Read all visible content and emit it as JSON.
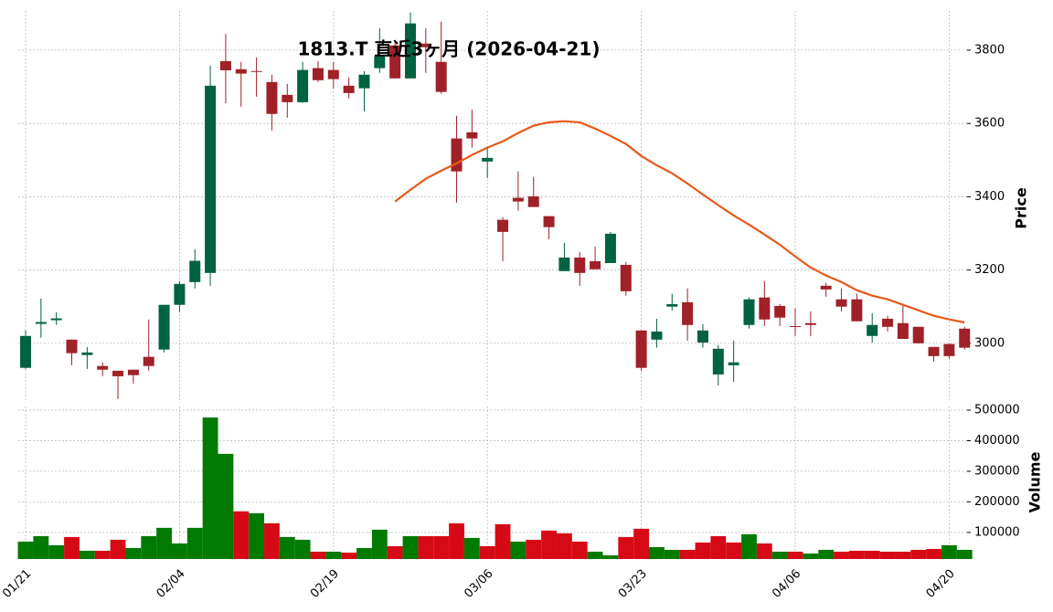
{
  "chart_data": {
    "type": "candlestick",
    "title": "1813.T 直近3ヶ月 (2026-04-21)",
    "categories": [
      "01/21",
      null,
      null,
      null,
      null,
      null,
      null,
      null,
      null,
      null,
      "02/04",
      null,
      null,
      null,
      null,
      null,
      null,
      null,
      null,
      null,
      "02/19",
      null,
      null,
      null,
      null,
      null,
      null,
      null,
      null,
      null,
      "03/06",
      null,
      null,
      null,
      null,
      null,
      null,
      null,
      null,
      null,
      "03/23",
      null,
      null,
      null,
      null,
      null,
      null,
      null,
      null,
      null,
      "04/06",
      null,
      null,
      null,
      null,
      null,
      null,
      null,
      null,
      null,
      "04/20",
      null
    ],
    "open": [
      2933,
      3053,
      3063,
      3010,
      2968,
      2938,
      2925,
      2928,
      2963,
      2983,
      3105,
      3167,
      3192,
      3770,
      3748,
      3743,
      3713,
      3678,
      3658,
      3751,
      3746,
      3703,
      3696,
      3751,
      3813,
      3723,
      3818,
      3768,
      3559,
      3576,
      3496,
      3337,
      3397,
      3401,
      3347,
      3197,
      3234,
      3224,
      3219,
      3214,
      3035,
      3010,
      3100,
      3112,
      3002,
      2915,
      2940,
      3050,
      3125,
      3102,
      3047,
      3055,
      3157,
      3120,
      3120,
      3020,
      3067,
      3055,
      3045,
      2990,
      2998,
      3040
    ],
    "high": [
      3035,
      3122,
      3085,
      3010,
      2990,
      2948,
      2925,
      2928,
      3065,
      3105,
      3170,
      3257,
      3758,
      3845,
      3768,
      3780,
      3733,
      3708,
      3768,
      3770,
      3768,
      3726,
      3743,
      3860,
      3828,
      3903,
      3860,
      3878,
      3621,
      3638,
      3534,
      3344,
      3469,
      3454,
      3347,
      3274,
      3249,
      3264,
      3304,
      3222,
      3035,
      3067,
      3135,
      3150,
      3052,
      2995,
      3007,
      3125,
      3170,
      3107,
      3095,
      3087,
      3165,
      3150,
      3135,
      3082,
      3075,
      3107,
      3045,
      2990,
      3000,
      3045
    ],
    "low": [
      2930,
      3015,
      3050,
      2940,
      2930,
      2910,
      2848,
      2890,
      2925,
      2975,
      3085,
      3150,
      3157,
      3655,
      3646,
      3673,
      3581,
      3616,
      3656,
      3713,
      3696,
      3668,
      3633,
      3738,
      3723,
      3723,
      3738,
      3681,
      3384,
      3534,
      3451,
      3224,
      3362,
      3372,
      3284,
      3197,
      3157,
      3202,
      3219,
      3130,
      2925,
      2988,
      3090,
      3007,
      2988,
      2885,
      2895,
      3040,
      3047,
      3047,
      3020,
      3020,
      3127,
      3087,
      3060,
      3002,
      3032,
      3012,
      3000,
      2950,
      2958,
      2983
    ],
    "close": [
      3020,
      3058,
      3068,
      2973,
      2975,
      2928,
      2910,
      2913,
      2938,
      3105,
      3162,
      3225,
      3703,
      3745,
      3736,
      3741,
      3626,
      3658,
      3746,
      3718,
      3721,
      3683,
      3733,
      3783,
      3723,
      3873,
      3808,
      3686,
      3469,
      3559,
      3506,
      3304,
      3387,
      3372,
      3317,
      3234,
      3192,
      3202,
      3299,
      3142,
      2933,
      3032,
      3107,
      3050,
      3035,
      2985,
      2948,
      3120,
      3065,
      3070,
      3045,
      3050,
      3147,
      3100,
      3060,
      3050,
      3045,
      3012,
      3000,
      2965,
      2965,
      2988
    ],
    "up_color": "#006340",
    "down_color": "#a02128",
    "ma": {
      "color": "#e8591a",
      "values": [
        null,
        null,
        null,
        null,
        null,
        null,
        null,
        null,
        null,
        null,
        null,
        null,
        null,
        null,
        null,
        null,
        null,
        null,
        null,
        null,
        null,
        null,
        null,
        null,
        3387,
        3419,
        3449,
        3471,
        3491,
        3514,
        3534,
        3551,
        3574,
        3594,
        3603,
        3606,
        3603,
        3586,
        3566,
        3544,
        3511,
        3486,
        3464,
        3436,
        3406,
        3377,
        3349,
        3324,
        3297,
        3269,
        3237,
        3207,
        3185,
        3167,
        3145,
        3130,
        3120,
        3105,
        3090,
        3075,
        3065,
        3057
      ]
    },
    "ylabel": "Price",
    "ylim": [
      2840,
      3907
    ],
    "yticks": [
      3000,
      3200,
      3400,
      3600,
      3800
    ],
    "grid": true,
    "volume": {
      "ylabel": "Volume",
      "up_color": "#007a00",
      "down_color": "#d60a16",
      "ylim": [
        13000,
        512000
      ],
      "yticks": [
        100000,
        200000,
        300000,
        400000,
        500000
      ],
      "values": [
        70000,
        88000,
        58000,
        85000,
        40000,
        40000,
        76000,
        49000,
        88000,
        115000,
        64000,
        115000,
        476000,
        357000,
        169000,
        163000,
        130000,
        85000,
        76000,
        37000,
        37000,
        34000,
        49000,
        109000,
        55000,
        88000,
        88000,
        88000,
        130000,
        82000,
        55000,
        127000,
        70000,
        76000,
        106000,
        97000,
        70000,
        37000,
        25000,
        85000,
        112000,
        52000,
        43000,
        43000,
        67000,
        88000,
        67000,
        94000,
        64000,
        37000,
        37000,
        31000,
        43000,
        37000,
        40000,
        40000,
        37000,
        37000,
        43000,
        46000,
        58000,
        43000
      ]
    }
  }
}
